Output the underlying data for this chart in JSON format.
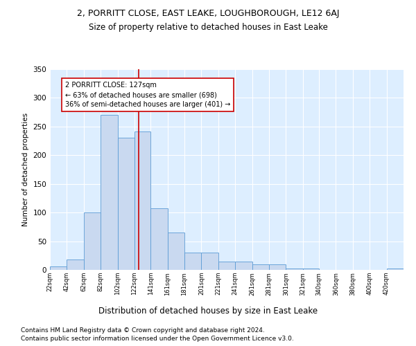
{
  "title": "2, PORRITT CLOSE, EAST LEAKE, LOUGHBOROUGH, LE12 6AJ",
  "subtitle": "Size of property relative to detached houses in East Leake",
  "xlabel": "Distribution of detached houses by size in East Leake",
  "ylabel": "Number of detached properties",
  "footnote1": "Contains HM Land Registry data © Crown copyright and database right 2024.",
  "footnote2": "Contains public sector information licensed under the Open Government Licence v3.0.",
  "bar_color": "#c9d9f0",
  "bar_edgecolor": "#5b9bd5",
  "background_color": "#ddeeff",
  "grid_color": "#ffffff",
  "annotation_box_color": "#cc0000",
  "vline_color": "#cc0000",
  "property_size": 127,
  "annotation_text": "2 PORRITT CLOSE: 127sqm\n← 63% of detached houses are smaller (698)\n36% of semi-detached houses are larger (401) →",
  "bin_labels": [
    "22sqm",
    "42sqm",
    "62sqm",
    "82sqm",
    "102sqm",
    "122sqm",
    "141sqm",
    "161sqm",
    "181sqm",
    "201sqm",
    "221sqm",
    "241sqm",
    "261sqm",
    "281sqm",
    "301sqm",
    "321sqm",
    "340sqm",
    "360sqm",
    "380sqm",
    "400sqm",
    "420sqm"
  ],
  "bin_edges": [
    22,
    42,
    62,
    82,
    102,
    122,
    141,
    161,
    181,
    201,
    221,
    241,
    261,
    281,
    301,
    321,
    340,
    360,
    380,
    400,
    420
  ],
  "bar_heights": [
    6,
    18,
    100,
    270,
    230,
    241,
    107,
    65,
    30,
    30,
    14,
    14,
    10,
    10,
    3,
    3,
    0,
    0,
    0,
    0,
    2
  ],
  "ylim": [
    0,
    350
  ],
  "yticks": [
    0,
    50,
    100,
    150,
    200,
    250,
    300,
    350
  ]
}
